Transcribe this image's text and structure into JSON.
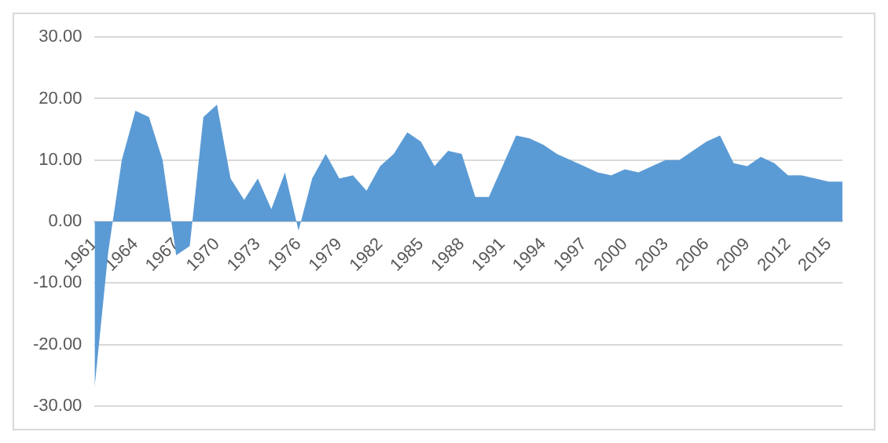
{
  "chart_data": {
    "type": "area",
    "categories": [
      "1961",
      null,
      null,
      "1964",
      null,
      null,
      "1967",
      null,
      null,
      "1970",
      null,
      null,
      "1973",
      null,
      null,
      "1976",
      null,
      null,
      "1979",
      null,
      null,
      "1982",
      null,
      null,
      "1985",
      null,
      null,
      "1988",
      null,
      null,
      "1991",
      null,
      null,
      "1994",
      null,
      null,
      "1997",
      null,
      null,
      "2000",
      null,
      null,
      "2003",
      null,
      null,
      "2006",
      null,
      null,
      "2009",
      null,
      null,
      "2012",
      null,
      null,
      "2015",
      null
    ],
    "series": [
      {
        "color": "#5b9bd5",
        "values": [
          -27,
          -5,
          10,
          18,
          17,
          10,
          -5.5,
          -4,
          17,
          19,
          7,
          3.5,
          7,
          2,
          8,
          -1.5,
          7,
          11,
          7,
          7.5,
          5,
          9,
          11,
          14.5,
          13,
          9,
          11.5,
          11,
          4,
          4,
          9,
          14,
          13.5,
          12.5,
          11,
          10,
          9,
          8,
          7.5,
          8.5,
          8,
          9,
          10,
          10,
          11.5,
          13,
          14,
          9.5,
          9,
          10.5,
          9.5,
          7.5,
          7.5,
          7,
          6.5,
          6.5
        ]
      }
    ],
    "ylim": [
      -30,
      30
    ],
    "yticks": [
      {
        "value": -30,
        "label": "-30.00"
      },
      {
        "value": -20,
        "label": "-20.00"
      },
      {
        "value": -10,
        "label": "-10.00"
      },
      {
        "value": 0,
        "label": "0.00"
      },
      {
        "value": 10,
        "label": "10.00"
      },
      {
        "value": 20,
        "label": "20.00"
      },
      {
        "value": 30,
        "label": "30.00"
      }
    ],
    "grid": "y",
    "legend": false
  }
}
